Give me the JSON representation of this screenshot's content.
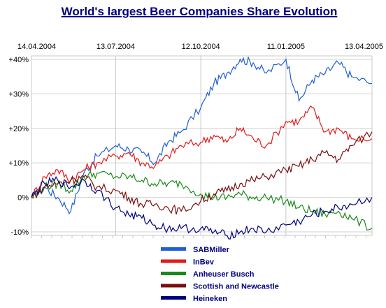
{
  "chart_data": {
    "type": "line",
    "title": "World's largest Beer Companies Share Evolution",
    "xlabel": "",
    "ylabel": "",
    "x_tick_labels": [
      "14.04.2004",
      "13.07.2004",
      "12.10.2004",
      "11.01.2005",
      "13.04.2005"
    ],
    "y_tick_labels": [
      "+40%",
      "+30%",
      "+20%",
      "+10%",
      "0%",
      "-10%"
    ],
    "y_tick_values": [
      40,
      30,
      20,
      10,
      0,
      -10
    ],
    "ylim": [
      -11,
      41
    ],
    "grid": true,
    "legend_position": "bottom",
    "x": [
      "2004-04-14",
      "2004-04-28",
      "2004-05-12",
      "2004-05-26",
      "2004-06-09",
      "2004-06-23",
      "2004-07-13",
      "2004-07-27",
      "2004-08-10",
      "2004-08-24",
      "2004-09-07",
      "2004-09-21",
      "2004-10-12",
      "2004-10-26",
      "2004-11-09",
      "2004-11-23",
      "2004-12-07",
      "2004-12-21",
      "2005-01-11",
      "2005-01-25",
      "2005-02-08",
      "2005-02-22",
      "2005-03-08",
      "2005-03-22",
      "2005-04-13"
    ],
    "series": [
      {
        "name": "SABMiller",
        "color": "#1F5FD6",
        "values": [
          0,
          3,
          0,
          -4,
          7,
          12,
          15,
          14,
          13,
          10,
          16,
          19,
          26,
          33,
          36,
          40,
          39,
          36,
          40,
          28,
          34,
          36,
          39,
          35,
          33
        ]
      },
      {
        "name": "InBev",
        "color": "#E31A1A",
        "values": [
          0,
          6,
          8,
          5,
          8,
          10,
          12,
          13,
          10,
          9,
          12,
          15,
          16,
          18,
          16,
          20,
          17,
          15,
          22,
          22,
          26,
          19,
          20,
          17,
          17
        ]
      },
      {
        "name": "Anheuser Busch",
        "color": "#1A8A1A",
        "values": [
          0,
          3,
          4,
          2,
          6,
          7,
          6,
          6,
          5,
          4,
          4,
          4,
          1,
          0,
          0,
          1,
          0,
          0,
          -1,
          -3,
          -4,
          -5,
          -4,
          -6,
          -9
        ]
      },
      {
        "name": "Scottish and Newcastle",
        "color": "#7A0F0F",
        "values": [
          0,
          3,
          4,
          5,
          6,
          3,
          2,
          0,
          -2,
          -2,
          -3,
          -4,
          -1,
          1,
          2,
          4,
          5,
          6,
          8,
          9,
          11,
          13,
          11,
          15,
          19
        ]
      },
      {
        "name": "Heineken",
        "color": "#000080",
        "values": [
          0,
          4,
          5,
          3,
          5,
          2,
          -3,
          -5,
          -6,
          -8,
          -9,
          -9,
          -9,
          -10,
          -11,
          -10,
          -9,
          -10,
          -8,
          -7,
          -5,
          -4,
          -3,
          -2,
          0
        ]
      }
    ]
  }
}
